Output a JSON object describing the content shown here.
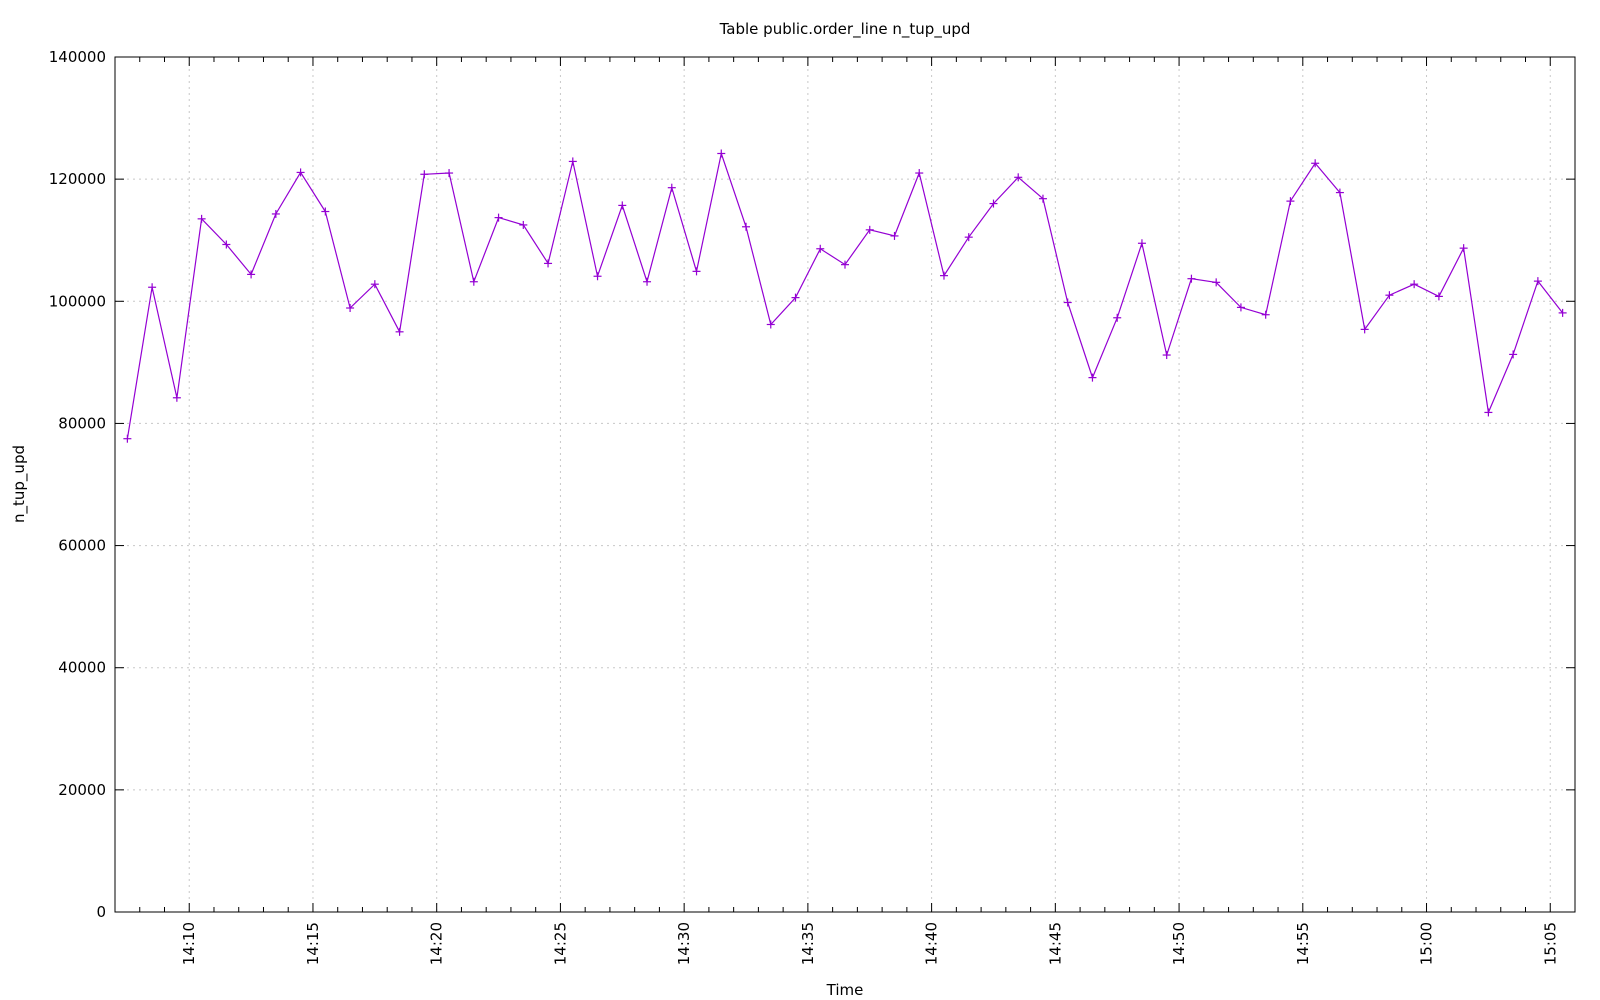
{
  "chart_data": {
    "type": "line",
    "title": "Table public.order_line n_tup_upd",
    "xlabel": "Time",
    "ylabel": "n_tup_upd",
    "ylim": [
      0,
      140000
    ],
    "yticks": [
      "0",
      "20000",
      "40000",
      "60000",
      "80000",
      "100000",
      "120000",
      "140000"
    ],
    "xticks": [
      "14:10",
      "14:15",
      "14:20",
      "14:25",
      "14:30",
      "14:35",
      "14:40",
      "14:45",
      "14:50",
      "14:55",
      "15:00",
      "15:05"
    ],
    "x_start": "14:07",
    "x_end": "15:06",
    "grid": true,
    "series": [
      {
        "color": "#9400d3",
        "marker": "plus",
        "x": [
          "14:07:30",
          "14:08:30",
          "14:09:30",
          "14:10:30",
          "14:11:30",
          "14:12:30",
          "14:13:30",
          "14:14:30",
          "14:15:30",
          "14:16:30",
          "14:17:30",
          "14:18:30",
          "14:19:30",
          "14:20:30",
          "14:21:30",
          "14:22:30",
          "14:23:30",
          "14:24:30",
          "14:25:30",
          "14:26:30",
          "14:27:30",
          "14:28:30",
          "14:29:30",
          "14:30:30",
          "14:31:30",
          "14:32:30",
          "14:33:30",
          "14:34:30",
          "14:35:30",
          "14:36:30",
          "14:37:30",
          "14:38:30",
          "14:39:30",
          "14:40:30",
          "14:41:30",
          "14:42:30",
          "14:43:30",
          "14:44:30",
          "14:45:30",
          "14:46:30",
          "14:47:30",
          "14:48:30",
          "14:49:30",
          "14:50:30",
          "14:51:30",
          "14:52:30",
          "14:53:30",
          "14:54:30",
          "14:55:30",
          "14:56:30",
          "14:57:30",
          "14:58:30",
          "14:59:30",
          "15:00:30",
          "15:01:30",
          "15:02:30",
          "15:03:30",
          "15:04:30",
          "15:05:30"
        ],
        "values": [
          77500,
          102300,
          84200,
          113500,
          109300,
          104400,
          114300,
          121100,
          114700,
          98900,
          102800,
          95000,
          120800,
          121000,
          103200,
          113700,
          112500,
          106200,
          122900,
          104100,
          115700,
          103200,
          118600,
          104900,
          124200,
          112200,
          96200,
          100600,
          108600,
          106000,
          111700,
          110700,
          121000,
          104200,
          110500,
          116000,
          120300,
          116800,
          99800,
          87500,
          97300,
          109500,
          91200,
          103700,
          103100,
          99000,
          97800,
          116400,
          122600,
          117800,
          95400,
          101000,
          102800,
          100800,
          108700,
          81800,
          91300,
          103300,
          98100
        ]
      }
    ]
  }
}
